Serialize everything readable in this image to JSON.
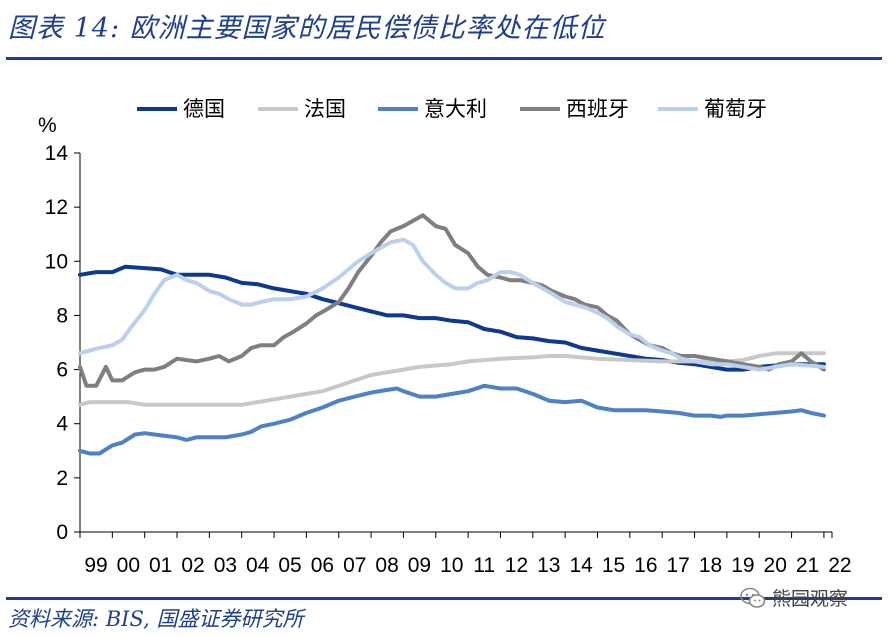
{
  "title": "图表 14: 欧洲主要国家的居民偿债比率处在低位",
  "source": "资料来源: BIS, 国盛证券研究所",
  "watermark": "熊园观察",
  "chart_data": {
    "type": "line",
    "ylabel": "%",
    "xlabel": "",
    "ylim": [
      0,
      14
    ],
    "yticks": [
      0,
      2,
      4,
      6,
      8,
      10,
      12,
      14
    ],
    "xlim": [
      1999,
      2022.25
    ],
    "categories": [
      "99",
      "00",
      "01",
      "02",
      "03",
      "04",
      "05",
      "06",
      "07",
      "08",
      "09",
      "10",
      "11",
      "12",
      "13",
      "14",
      "15",
      "16",
      "17",
      "18",
      "19",
      "20",
      "21",
      "22"
    ],
    "legend_position": "top",
    "series": [
      {
        "name": "德国",
        "color": "#0D3A8E",
        "points": [
          [
            1999,
            9.5
          ],
          [
            1999.5,
            9.6
          ],
          [
            2000,
            9.6
          ],
          [
            2000.4,
            9.8
          ],
          [
            2001,
            9.75
          ],
          [
            2001.5,
            9.7
          ],
          [
            2002,
            9.5
          ],
          [
            2003,
            9.5
          ],
          [
            2003.5,
            9.4
          ],
          [
            2004,
            9.2
          ],
          [
            2004.5,
            9.15
          ],
          [
            2005,
            9.0
          ],
          [
            2005.5,
            8.9
          ],
          [
            2006,
            8.8
          ],
          [
            2006.5,
            8.6
          ],
          [
            2007,
            8.45
          ],
          [
            2007.5,
            8.3
          ],
          [
            2008,
            8.15
          ],
          [
            2008.5,
            8.0
          ],
          [
            2009,
            8.0
          ],
          [
            2009.5,
            7.9
          ],
          [
            2010,
            7.9
          ],
          [
            2010.5,
            7.8
          ],
          [
            2011,
            7.75
          ],
          [
            2011.5,
            7.5
          ],
          [
            2012,
            7.4
          ],
          [
            2012.5,
            7.2
          ],
          [
            2013,
            7.15
          ],
          [
            2013.5,
            7.05
          ],
          [
            2014,
            7.0
          ],
          [
            2014.5,
            6.8
          ],
          [
            2015,
            6.7
          ],
          [
            2015.5,
            6.6
          ],
          [
            2016,
            6.5
          ],
          [
            2016.5,
            6.4
          ],
          [
            2017,
            6.35
          ],
          [
            2017.5,
            6.25
          ],
          [
            2018,
            6.2
          ],
          [
            2018.5,
            6.1
          ],
          [
            2019,
            6.0
          ],
          [
            2019.5,
            6.0
          ],
          [
            2020,
            6.1
          ],
          [
            2020.5,
            6.15
          ],
          [
            2021,
            6.2
          ],
          [
            2021.5,
            6.2
          ],
          [
            2022,
            6.2
          ]
        ]
      },
      {
        "name": "法国",
        "color": "#C8C8C8",
        "points": [
          [
            1999,
            4.7
          ],
          [
            1999.3,
            4.8
          ],
          [
            2000,
            4.8
          ],
          [
            2000.5,
            4.8
          ],
          [
            2001,
            4.7
          ],
          [
            2002,
            4.7
          ],
          [
            2003,
            4.7
          ],
          [
            2004,
            4.7
          ],
          [
            2004.5,
            4.8
          ],
          [
            2005,
            4.9
          ],
          [
            2005.5,
            5.0
          ],
          [
            2006,
            5.1
          ],
          [
            2006.5,
            5.2
          ],
          [
            2007,
            5.4
          ],
          [
            2007.5,
            5.6
          ],
          [
            2008,
            5.8
          ],
          [
            2008.5,
            5.9
          ],
          [
            2009,
            6.0
          ],
          [
            2009.5,
            6.1
          ],
          [
            2010,
            6.15
          ],
          [
            2010.5,
            6.2
          ],
          [
            2011,
            6.3
          ],
          [
            2011.5,
            6.35
          ],
          [
            2012,
            6.4
          ],
          [
            2013,
            6.45
          ],
          [
            2013.5,
            6.5
          ],
          [
            2014,
            6.5
          ],
          [
            2014.5,
            6.45
          ],
          [
            2015,
            6.4
          ],
          [
            2016,
            6.35
          ],
          [
            2017,
            6.3
          ],
          [
            2018,
            6.3
          ],
          [
            2019,
            6.3
          ],
          [
            2019.5,
            6.35
          ],
          [
            2020,
            6.5
          ],
          [
            2020.5,
            6.6
          ],
          [
            2021,
            6.6
          ],
          [
            2022,
            6.6
          ]
        ]
      },
      {
        "name": "意大利",
        "color": "#4F81C7",
        "points": [
          [
            1999,
            3.0
          ],
          [
            1999.3,
            2.9
          ],
          [
            1999.6,
            2.9
          ],
          [
            2000,
            3.2
          ],
          [
            2000.3,
            3.3
          ],
          [
            2000.7,
            3.6
          ],
          [
            2001,
            3.65
          ],
          [
            2001.3,
            3.6
          ],
          [
            2002,
            3.5
          ],
          [
            2002.3,
            3.4
          ],
          [
            2002.6,
            3.5
          ],
          [
            2003,
            3.5
          ],
          [
            2003.5,
            3.5
          ],
          [
            2004,
            3.6
          ],
          [
            2004.3,
            3.7
          ],
          [
            2004.6,
            3.9
          ],
          [
            2005,
            4.0
          ],
          [
            2005.5,
            4.15
          ],
          [
            2006,
            4.4
          ],
          [
            2006.5,
            4.6
          ],
          [
            2007,
            4.85
          ],
          [
            2007.5,
            5.0
          ],
          [
            2008,
            5.15
          ],
          [
            2008.5,
            5.25
          ],
          [
            2008.8,
            5.3
          ],
          [
            2009,
            5.2
          ],
          [
            2009.5,
            5.0
          ],
          [
            2010,
            5.0
          ],
          [
            2010.5,
            5.1
          ],
          [
            2011,
            5.2
          ],
          [
            2011.5,
            5.4
          ],
          [
            2012,
            5.3
          ],
          [
            2012.5,
            5.3
          ],
          [
            2013,
            5.1
          ],
          [
            2013.5,
            4.85
          ],
          [
            2014,
            4.8
          ],
          [
            2014.5,
            4.85
          ],
          [
            2015,
            4.6
          ],
          [
            2015.5,
            4.5
          ],
          [
            2016,
            4.5
          ],
          [
            2016.5,
            4.5
          ],
          [
            2017,
            4.45
          ],
          [
            2017.5,
            4.4
          ],
          [
            2018,
            4.3
          ],
          [
            2018.5,
            4.3
          ],
          [
            2018.8,
            4.25
          ],
          [
            2019,
            4.3
          ],
          [
            2019.5,
            4.3
          ],
          [
            2020,
            4.35
          ],
          [
            2020.5,
            4.4
          ],
          [
            2021,
            4.45
          ],
          [
            2021.3,
            4.5
          ],
          [
            2021.6,
            4.4
          ],
          [
            2022,
            4.3
          ]
        ]
      },
      {
        "name": "西班牙",
        "color": "#7F7F7F",
        "points": [
          [
            1999,
            6.1
          ],
          [
            1999.2,
            5.4
          ],
          [
            1999.5,
            5.4
          ],
          [
            1999.8,
            6.1
          ],
          [
            2000,
            5.6
          ],
          [
            2000.3,
            5.6
          ],
          [
            2000.7,
            5.9
          ],
          [
            2001,
            6.0
          ],
          [
            2001.3,
            6.0
          ],
          [
            2001.6,
            6.1
          ],
          [
            2002,
            6.4
          ],
          [
            2002.3,
            6.35
          ],
          [
            2002.6,
            6.3
          ],
          [
            2003,
            6.4
          ],
          [
            2003.3,
            6.5
          ],
          [
            2003.6,
            6.3
          ],
          [
            2004,
            6.5
          ],
          [
            2004.3,
            6.8
          ],
          [
            2004.6,
            6.9
          ],
          [
            2005,
            6.9
          ],
          [
            2005.3,
            7.2
          ],
          [
            2005.6,
            7.4
          ],
          [
            2006,
            7.7
          ],
          [
            2006.3,
            8.0
          ],
          [
            2006.6,
            8.2
          ],
          [
            2007,
            8.5
          ],
          [
            2007.3,
            9.0
          ],
          [
            2007.6,
            9.6
          ],
          [
            2008,
            10.2
          ],
          [
            2008.3,
            10.7
          ],
          [
            2008.6,
            11.1
          ],
          [
            2009,
            11.3
          ],
          [
            2009.3,
            11.5
          ],
          [
            2009.6,
            11.7
          ],
          [
            2010,
            11.3
          ],
          [
            2010.3,
            11.2
          ],
          [
            2010.6,
            10.6
          ],
          [
            2011,
            10.3
          ],
          [
            2011.3,
            9.8
          ],
          [
            2011.6,
            9.5
          ],
          [
            2012,
            9.4
          ],
          [
            2012.3,
            9.3
          ],
          [
            2012.6,
            9.3
          ],
          [
            2013,
            9.2
          ],
          [
            2013.3,
            9.1
          ],
          [
            2013.6,
            8.9
          ],
          [
            2014,
            8.7
          ],
          [
            2014.3,
            8.6
          ],
          [
            2014.6,
            8.4
          ],
          [
            2015,
            8.3
          ],
          [
            2015.3,
            8.0
          ],
          [
            2015.6,
            7.8
          ],
          [
            2016,
            7.3
          ],
          [
            2016.3,
            7.1
          ],
          [
            2016.6,
            6.9
          ],
          [
            2017,
            6.8
          ],
          [
            2017.3,
            6.6
          ],
          [
            2017.6,
            6.5
          ],
          [
            2018,
            6.5
          ],
          [
            2018.5,
            6.4
          ],
          [
            2019,
            6.3
          ],
          [
            2019.5,
            6.2
          ],
          [
            2020,
            6.1
          ],
          [
            2020.3,
            6.0
          ],
          [
            2020.6,
            6.2
          ],
          [
            2021,
            6.3
          ],
          [
            2021.3,
            6.6
          ],
          [
            2021.6,
            6.3
          ],
          [
            2022,
            6.0
          ]
        ]
      },
      {
        "name": "葡萄牙",
        "color": "#BCCFEC",
        "points": [
          [
            1999,
            6.6
          ],
          [
            1999.3,
            6.7
          ],
          [
            1999.6,
            6.8
          ],
          [
            2000,
            6.9
          ],
          [
            2000.3,
            7.1
          ],
          [
            2000.6,
            7.6
          ],
          [
            2001,
            8.2
          ],
          [
            2001.3,
            8.8
          ],
          [
            2001.6,
            9.3
          ],
          [
            2002,
            9.5
          ],
          [
            2002.3,
            9.3
          ],
          [
            2002.6,
            9.2
          ],
          [
            2003,
            8.9
          ],
          [
            2003.3,
            8.8
          ],
          [
            2003.6,
            8.6
          ],
          [
            2004,
            8.4
          ],
          [
            2004.3,
            8.4
          ],
          [
            2004.6,
            8.5
          ],
          [
            2005,
            8.6
          ],
          [
            2005.5,
            8.6
          ],
          [
            2006,
            8.7
          ],
          [
            2006.5,
            9.0
          ],
          [
            2007,
            9.4
          ],
          [
            2007.3,
            9.7
          ],
          [
            2007.6,
            10.0
          ],
          [
            2008,
            10.3
          ],
          [
            2008.3,
            10.5
          ],
          [
            2008.6,
            10.7
          ],
          [
            2009,
            10.8
          ],
          [
            2009.3,
            10.6
          ],
          [
            2009.6,
            10.0
          ],
          [
            2010,
            9.5
          ],
          [
            2010.3,
            9.2
          ],
          [
            2010.6,
            9.0
          ],
          [
            2011,
            9.0
          ],
          [
            2011.3,
            9.2
          ],
          [
            2011.6,
            9.3
          ],
          [
            2012,
            9.6
          ],
          [
            2012.3,
            9.6
          ],
          [
            2012.6,
            9.5
          ],
          [
            2013,
            9.2
          ],
          [
            2013.3,
            9.0
          ],
          [
            2013.6,
            8.8
          ],
          [
            2014,
            8.5
          ],
          [
            2014.3,
            8.4
          ],
          [
            2014.6,
            8.3
          ],
          [
            2015,
            8.1
          ],
          [
            2015.3,
            7.9
          ],
          [
            2015.6,
            7.6
          ],
          [
            2016,
            7.3
          ],
          [
            2016.3,
            7.2
          ],
          [
            2016.6,
            6.9
          ],
          [
            2017,
            6.7
          ],
          [
            2017.3,
            6.6
          ],
          [
            2017.6,
            6.4
          ],
          [
            2018,
            6.3
          ],
          [
            2018.5,
            6.2
          ],
          [
            2019,
            6.2
          ],
          [
            2019.5,
            6.1
          ],
          [
            2020,
            6.0
          ],
          [
            2020.5,
            6.1
          ],
          [
            2021,
            6.2
          ],
          [
            2021.5,
            6.15
          ],
          [
            2022,
            6.1
          ]
        ]
      }
    ]
  }
}
